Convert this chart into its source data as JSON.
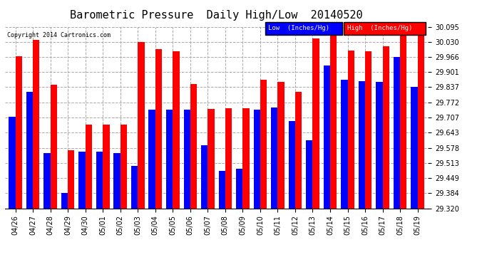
{
  "title": "Barometric Pressure  Daily High/Low  20140520",
  "copyright": "Copyright 2014 Cartronics.com",
  "dates": [
    "04/26",
    "04/27",
    "04/28",
    "04/29",
    "04/30",
    "05/01",
    "05/02",
    "05/03",
    "05/04",
    "05/05",
    "05/06",
    "05/07",
    "05/08",
    "05/09",
    "05/10",
    "05/11",
    "05/12",
    "05/13",
    "05/14",
    "05/15",
    "05/16",
    "05/17",
    "05/18",
    "05/19"
  ],
  "low": [
    29.71,
    29.818,
    29.555,
    29.384,
    29.562,
    29.562,
    29.555,
    29.5,
    29.74,
    29.74,
    29.74,
    29.59,
    29.48,
    29.49,
    29.74,
    29.75,
    29.693,
    29.61,
    29.928,
    29.87,
    29.862,
    29.858,
    29.967,
    29.838
  ],
  "high": [
    29.97,
    30.04,
    29.848,
    29.568,
    29.678,
    29.678,
    29.678,
    30.03,
    30.0,
    29.99,
    29.85,
    29.745,
    29.748,
    29.748,
    29.87,
    29.86,
    29.818,
    30.045,
    30.098,
    29.993,
    29.99,
    30.01,
    30.06,
    30.098
  ],
  "ylim": [
    29.32,
    30.095
  ],
  "yticks": [
    29.32,
    29.384,
    29.449,
    29.513,
    29.578,
    29.643,
    29.707,
    29.772,
    29.837,
    29.901,
    29.966,
    30.03,
    30.095
  ],
  "bar_color_low": "#0000ff",
  "bar_color_high": "#ff0000",
  "background_color": "#ffffff",
  "grid_color": "#aaaaaa",
  "title_fontsize": 11,
  "tick_fontsize": 7,
  "legend_low_label": "Low  (Inches/Hg)",
  "legend_high_label": "High  (Inches/Hg)"
}
